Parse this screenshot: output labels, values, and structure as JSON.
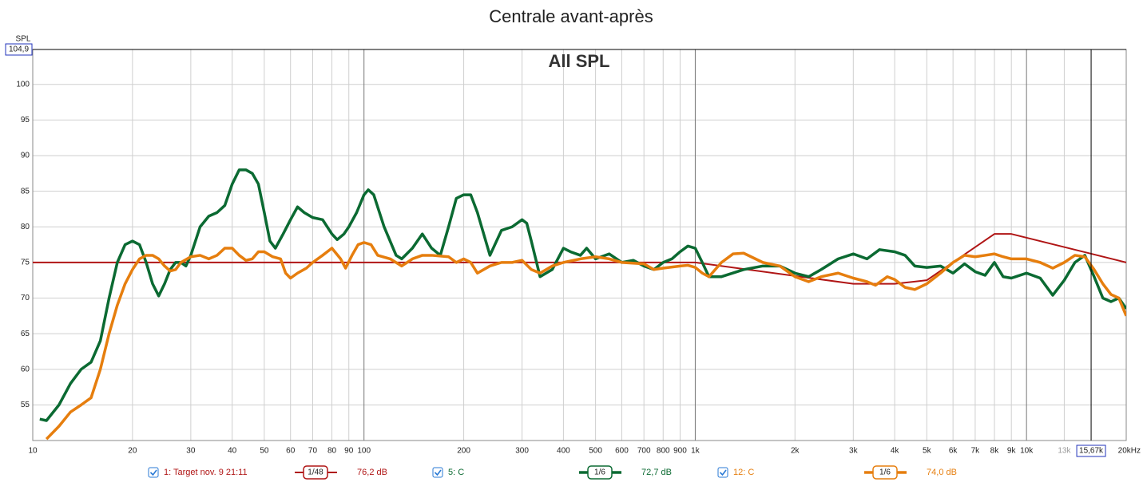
{
  "chart_data": {
    "type": "line",
    "title": "Centrale avant-après",
    "subtitle": "All SPL",
    "ylabel": "SPL",
    "xscale": "log",
    "xlim": [
      10,
      20000
    ],
    "ylim": [
      50,
      104.9
    ],
    "yticks": [
      55,
      60,
      65,
      70,
      75,
      80,
      85,
      90,
      95,
      100
    ],
    "xticks": [
      10,
      20,
      30,
      40,
      50,
      60,
      70,
      80,
      90,
      100,
      200,
      300,
      400,
      500,
      600,
      700,
      800,
      900,
      {
        "value": 1000,
        "label": "1k"
      },
      {
        "value": 2000,
        "label": "2k"
      },
      {
        "value": 3000,
        "label": "3k"
      },
      {
        "value": 4000,
        "label": "4k"
      },
      {
        "value": 5000,
        "label": "5k"
      },
      {
        "value": 6000,
        "label": "6k"
      },
      {
        "value": 7000,
        "label": "7k"
      },
      {
        "value": 8000,
        "label": "8k"
      },
      {
        "value": 9000,
        "label": "9k"
      },
      {
        "value": 10000,
        "label": "10k"
      },
      {
        "value": 13000,
        "label": "13k"
      },
      {
        "value": 20000,
        "label": "20kHz"
      }
    ],
    "grid": true,
    "cursor": {
      "x": {
        "value": 15670,
        "label": "15,67k"
      },
      "y": {
        "value": 104.9,
        "label": "104,9"
      }
    },
    "series": [
      {
        "name": "1: Target nov. 9 21:11",
        "color": "#b01515",
        "smoothing": "1/48",
        "level": "76,2 dB",
        "x": [
          10,
          1000,
          3000,
          4000,
          5000,
          8000,
          9000,
          20000
        ],
        "values": [
          75,
          75,
          72,
          72,
          72.5,
          79,
          79,
          75
        ]
      },
      {
        "name": "5: C",
        "color": "#0b6a32",
        "smoothing": "1/6",
        "level": "72,7 dB",
        "x": [
          10.5,
          11,
          12,
          13,
          14,
          15,
          16,
          17,
          18,
          19,
          20,
          21,
          22,
          23,
          24,
          25,
          26,
          27,
          28,
          29,
          30,
          32,
          34,
          36,
          38,
          40,
          42,
          44,
          46,
          48,
          50,
          52,
          54,
          57,
          60,
          63,
          66,
          70,
          75,
          80,
          83,
          87,
          90,
          95,
          100,
          103,
          107,
          115,
          125,
          130,
          140,
          150,
          160,
          170,
          180,
          190,
          200,
          210,
          220,
          240,
          260,
          280,
          300,
          310,
          320,
          340,
          370,
          400,
          420,
          450,
          470,
          500,
          550,
          600,
          650,
          700,
          750,
          800,
          850,
          900,
          950,
          1000,
          1050,
          1100,
          1200,
          1400,
          1600,
          1800,
          2000,
          2200,
          2400,
          2700,
          3000,
          3300,
          3600,
          4000,
          4300,
          4600,
          5000,
          5500,
          6000,
          6500,
          7000,
          7500,
          8000,
          8500,
          9000,
          10000,
          11000,
          12000,
          13000,
          14000,
          15000,
          16000,
          17000,
          18000,
          19000,
          20000
        ],
        "values": [
          53,
          52.8,
          55,
          58,
          60,
          61,
          64,
          70,
          75,
          77.5,
          78,
          77.5,
          75,
          72,
          70.3,
          72,
          74,
          75,
          75,
          74.5,
          76,
          80,
          81.5,
          82,
          83,
          86,
          88,
          88,
          87.5,
          86,
          82,
          78,
          77,
          79,
          81,
          82.8,
          82,
          81.3,
          81,
          79,
          78.2,
          79,
          80,
          82,
          84.5,
          85.2,
          84.5,
          80,
          76,
          75.5,
          77,
          79,
          77,
          76,
          80,
          84,
          84.5,
          84.5,
          82,
          76,
          79.5,
          80,
          81,
          80.5,
          78,
          73,
          74,
          77,
          76.5,
          76,
          77,
          75.5,
          76.2,
          75,
          75.3,
          74.5,
          74,
          75,
          75.5,
          76.5,
          77.3,
          77,
          75,
          73,
          73,
          74,
          74.5,
          74.5,
          73.5,
          73,
          74,
          75.5,
          76.2,
          75.5,
          76.8,
          76.5,
          76,
          74.5,
          74.3,
          74.5,
          73.5,
          74.8,
          73.7,
          73.2,
          75,
          73,
          72.8,
          73.5,
          72.8,
          70.4,
          72.5,
          75,
          76,
          73,
          70,
          69.5,
          70,
          68.5
        ]
      },
      {
        "name": "12: C",
        "color": "#e67e0e",
        "smoothing": "1/6",
        "level": "74,0 dB",
        "x": [
          11,
          12,
          13,
          14,
          15,
          16,
          17,
          18,
          19,
          20,
          21,
          22,
          23,
          24,
          25,
          26,
          27,
          28,
          30,
          32,
          34,
          36,
          38,
          40,
          42,
          44,
          46,
          48,
          50,
          53,
          56,
          58,
          60,
          63,
          67,
          70,
          75,
          80,
          85,
          88,
          92,
          96,
          100,
          105,
          110,
          120,
          130,
          140,
          150,
          160,
          180,
          190,
          200,
          210,
          220,
          240,
          260,
          280,
          300,
          320,
          340,
          370,
          400,
          450,
          500,
          550,
          600,
          700,
          750,
          800,
          900,
          950,
          1000,
          1050,
          1100,
          1200,
          1300,
          1400,
          1600,
          1800,
          2000,
          2200,
          2400,
          2700,
          3000,
          3300,
          3500,
          3800,
          4000,
          4300,
          4600,
          5000,
          5500,
          6000,
          6500,
          7000,
          7500,
          8000,
          8500,
          9000,
          10000,
          11000,
          12000,
          13000,
          14000,
          15000,
          16000,
          17000,
          18000,
          19000,
          20000
        ],
        "values": [
          50.2,
          52,
          54,
          55,
          56,
          60,
          65,
          69,
          72,
          74,
          75.5,
          76,
          76,
          75.5,
          74.5,
          73.8,
          74,
          75,
          75.8,
          76,
          75.5,
          76,
          77,
          77,
          76,
          75.3,
          75.5,
          76.5,
          76.5,
          75.8,
          75.5,
          73.5,
          72.8,
          73.5,
          74.2,
          75,
          76,
          77,
          75.5,
          74.2,
          76,
          77.5,
          77.8,
          77.5,
          76,
          75.5,
          74.5,
          75.5,
          76,
          76,
          75.8,
          75,
          75.5,
          75,
          73.5,
          74.5,
          75,
          75,
          75.3,
          74,
          73.5,
          74.5,
          75,
          75.5,
          75.8,
          75.5,
          75,
          74.8,
          74,
          74.2,
          74.5,
          74.6,
          74.3,
          73.5,
          73,
          75,
          76.2,
          76.3,
          75,
          74.5,
          73,
          72.3,
          73,
          73.5,
          72.8,
          72.3,
          71.8,
          73,
          72.6,
          71.5,
          71.2,
          72,
          73.5,
          75,
          76,
          75.8,
          76,
          76.2,
          75.8,
          75.5,
          75.5,
          75,
          74.2,
          75,
          76,
          75.8,
          74,
          72,
          70.5,
          70,
          67.5
        ]
      }
    ]
  }
}
